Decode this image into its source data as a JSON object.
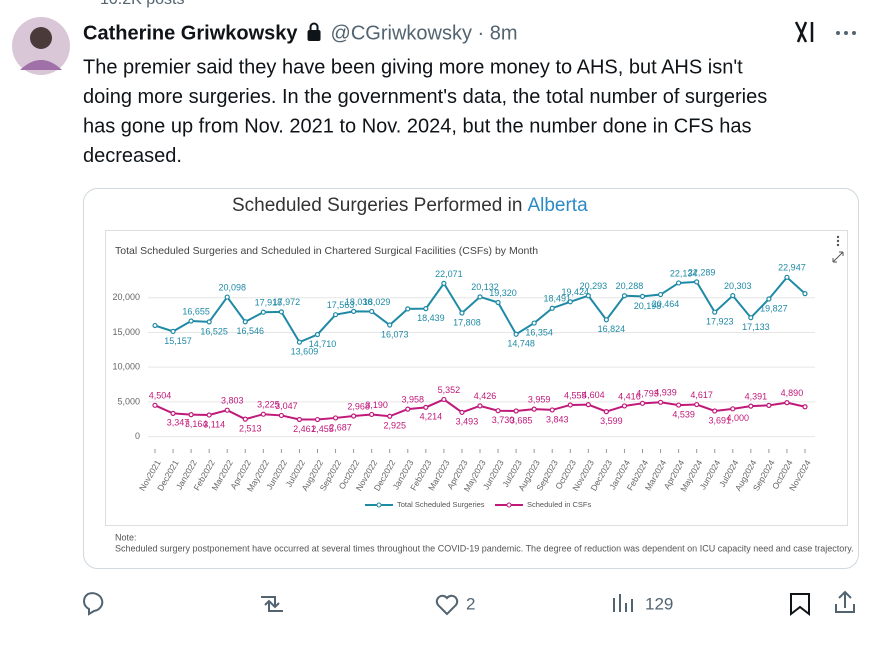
{
  "tweet": {
    "header_cut": "10.2K posts",
    "author": "Catherine Griwkowsky",
    "meta": "@CGriwkowsky · 8m",
    "text_lines": [
      "The premier said they have been giving more money to AHS, but AHS isn't",
      "doing more surgeries. In the government's data, the total number of surgeries",
      "has gone up from Nov. 2021 to Nov. 2024, but the number done in CFS has",
      "decreased."
    ],
    "likes": "2",
    "views": "129"
  },
  "chart_data": {
    "type": "line",
    "title": "Scheduled Surgeries Performed in",
    "title_highlight": "Alberta",
    "subtitle": "Total Scheduled Surgeries and Scheduled in Chartered Surgical Facilities (CSFs) by Month",
    "note_title": "Note:",
    "note": "Scheduled surgery postponement have occurred at several times throughout the COVID-19 pandemic. The degree of reduction was dependent on ICU capacity need and case trajectory.",
    "categories": [
      "Nov2021",
      "Dec2021",
      "Jan2022",
      "Feb2022",
      "Mar2022",
      "Apr2022",
      "May2022",
      "Jun2022",
      "Jul2022",
      "Aug2022",
      "Sep2022",
      "Oct2022",
      "Nov2022",
      "Dec2022",
      "Jan2023",
      "Feb2023",
      "Mar2023",
      "Apr2023",
      "May2023",
      "Jun2023",
      "Jul2023",
      "Aug2023",
      "Sep2023",
      "Oct2023",
      "Nov2023",
      "Dec2023",
      "Jan2024",
      "Feb2024",
      "Mar2024",
      "Apr2024",
      "May2024",
      "Jun2024",
      "Jul2024",
      "Aug2024",
      "Sep2024",
      "Oct2024",
      "Nov2024"
    ],
    "series": [
      {
        "name": "Total Scheduled Surgeries",
        "color": "#1f8aa6",
        "values": [
          16000,
          15157,
          16655,
          16525,
          20098,
          16546,
          17918,
          17972,
          13609,
          14710,
          17563,
          18036,
          18029,
          16073,
          18400,
          18439,
          22071,
          17808,
          20132,
          19320,
          14748,
          16354,
          18491,
          19424,
          20293,
          16824,
          20288,
          20198,
          20464,
          22134,
          22289,
          17923,
          20303,
          17133,
          19827,
          22947,
          20600
        ],
        "value_labels": [
          null,
          "15,157",
          "16,655",
          "16,525",
          "20,098",
          "16,546",
          "17,918",
          "17,972",
          "13,609",
          "14,710",
          "17,563",
          "18,036",
          "18,029",
          "16,073",
          null,
          "18,439",
          "22,071",
          "17,808",
          "20,132",
          "19,320",
          "14,748",
          "16,354",
          "18,491",
          "19,424",
          "20,293",
          "16,824",
          "20,288",
          "20,198",
          "20,464",
          "22,134",
          "22,289",
          "17,923",
          "20,303",
          "17,133",
          "19,827",
          "22,947",
          null
        ]
      },
      {
        "name": "Scheduled in CSFs",
        "color": "#c0197a",
        "values": [
          4504,
          3347,
          3164,
          3114,
          3803,
          2513,
          3225,
          3047,
          2461,
          2455,
          2687,
          2968,
          3190,
          2925,
          3958,
          4214,
          5352,
          3493,
          4426,
          3730,
          3685,
          3959,
          3843,
          4555,
          4604,
          3599,
          4416,
          4793,
          4939,
          4539,
          4617,
          3691,
          4000,
          4391,
          4500,
          4890,
          4300
        ],
        "value_labels": [
          "4,504",
          "3,347",
          "3,164",
          "3,114",
          "3,803",
          "2,513",
          "3,225",
          "3,047",
          "2,461",
          "2,455",
          "2,687",
          "2,968",
          "3,190",
          "2,925",
          "3,958",
          "4,214",
          "5,352",
          "3,493",
          "4,426",
          "3,730",
          "3,685",
          "3,959",
          "3,843",
          "4,555",
          "4,604",
          "3,599",
          "4,416",
          "4,793",
          "4,939",
          "4,539",
          "4,617",
          "3,691",
          "4,000",
          "4,391",
          null,
          "4,890",
          null
        ]
      }
    ],
    "ylim": [
      -1500,
      24000
    ],
    "yticks": [
      0,
      {
        "value": 5000,
        "label": "5,000"
      },
      {
        "value": 10000,
        "label": "10,000"
      },
      {
        "value": 15000,
        "label": "15,000"
      },
      {
        "value": 20000,
        "label": "20,000"
      }
    ],
    "grid": true
  }
}
